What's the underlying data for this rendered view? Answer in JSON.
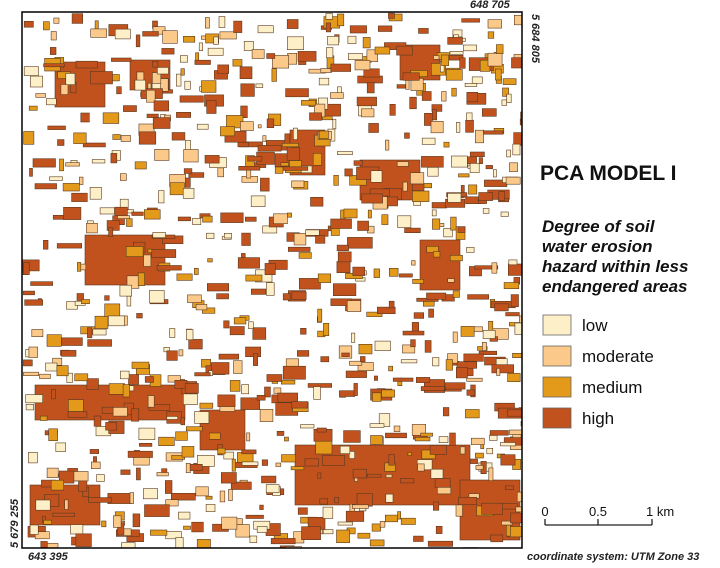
{
  "map": {
    "coords": {
      "top_right_easting": "648 705",
      "top_right_northing": "5 684 805",
      "bottom_left_northing": "5 679 255",
      "bottom_left_easting": "643 395"
    },
    "title": "PCA MODEL I",
    "legend": {
      "title_lines": [
        "Degree of soil",
        "water erosion",
        "hazard within less",
        "endangered areas"
      ],
      "items": [
        {
          "label": "low",
          "color": "#fdf0c8"
        },
        {
          "label": "moderate",
          "color": "#fbc98a"
        },
        {
          "label": "medium",
          "color": "#e39a1a"
        },
        {
          "label": "high",
          "color": "#c1521d"
        }
      ]
    },
    "scale_bar": {
      "labels": [
        "0",
        "0.5",
        "1 km"
      ]
    },
    "crs_note": "coordinate system: UTM Zone 33"
  }
}
